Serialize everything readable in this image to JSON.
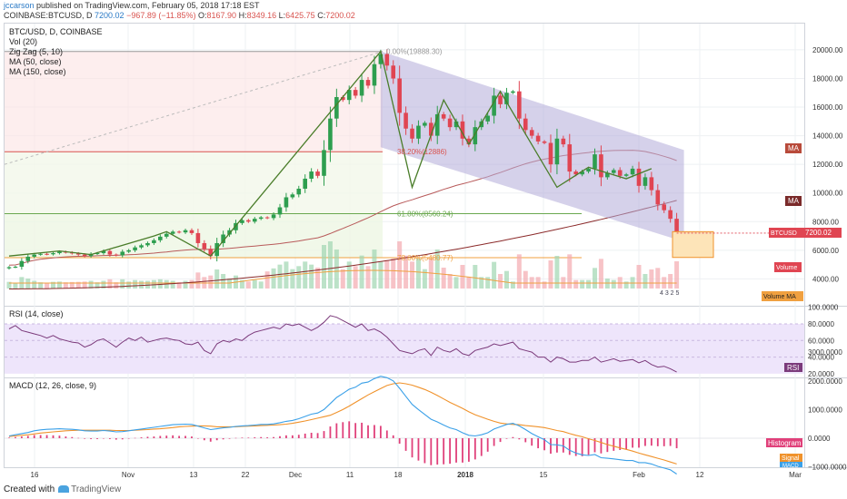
{
  "header": {
    "username": "jccarson",
    "published_text": "published on TradingView.com, February 05, 2018 17:18 EST",
    "symbol_line": {
      "symbol": "COINBASE:BTCUSD, D",
      "last": "7200.02",
      "change": "−967.89 (−11.85%)",
      "open_label": "O:",
      "open": "8167.90",
      "high_label": "H:",
      "high": "8349.16",
      "low_label": "L:",
      "low": "6425.75",
      "close_label": "C:",
      "close": "7200.02"
    }
  },
  "legend": [
    "BTC/USD, D, COINBASE",
    "Vol (20)",
    "Zig Zag (5, 10)",
    "MA (50, close)",
    "MA (150, close)"
  ],
  "footer": {
    "created_with": "Created with",
    "brand": "TradingView"
  },
  "colors": {
    "up_candle": "#2e9e4f",
    "down_candle": "#e04552",
    "zigzag": "#4a7d2a",
    "ma50": "#b85a5a",
    "ma150": "#8b2a2a",
    "channel": "#b3acd9",
    "rsi": "#7b3a7b",
    "macd": "#3aa0e8",
    "signal": "#f0922b",
    "histogram": "#e0407a"
  },
  "chart_data": [
    {
      "type": "candlestick",
      "title": "BTC/USD, D, COINBASE",
      "ylim": [
        3000,
        21000
      ],
      "y_ticks": [
        "20000.00",
        "18000.00",
        "16000.00",
        "14000.00",
        "12000.00",
        "10000.00",
        "8000.00",
        "6000.00",
        "4000.00"
      ],
      "x_ticks": [
        "16",
        "Nov",
        "13",
        "22",
        "Dec",
        "11",
        "18",
        "2018",
        "15",
        "Feb",
        "12",
        "Mar"
      ],
      "series_close": [
        4820,
        4850,
        5250,
        5550,
        5700,
        5750,
        5720,
        5800,
        5900,
        5850,
        5780,
        5700,
        5600,
        5750,
        5800,
        5950,
        5700,
        5650,
        5900,
        6000,
        6200,
        6350,
        6500,
        6700,
        6950,
        7150,
        7300,
        7250,
        7400,
        7200,
        6500,
        6100,
        5600,
        6500,
        7100,
        7400,
        7900,
        8100,
        8000,
        8200,
        8300,
        8250,
        8500,
        9000,
        9700,
        9900,
        10300,
        11000,
        11500,
        11200,
        13000,
        15200,
        16700,
        16500,
        17200,
        16800,
        17900,
        17500,
        19000,
        19700,
        18900,
        18000,
        15600,
        14500,
        13800,
        14700,
        14900,
        14000,
        15500,
        15200,
        14600,
        15000,
        13800,
        13400,
        14600,
        15000,
        15400,
        16800,
        16200,
        17000,
        17100,
        15200,
        14400,
        14000,
        13600,
        13500,
        12000,
        13800,
        13400,
        11500,
        11300,
        11500,
        11700,
        12700,
        11100,
        11400,
        11600,
        11200,
        11300,
        11700,
        10500,
        11100,
        10200,
        9200,
        8800,
        8200,
        7200
      ],
      "annotations": [
        {
          "level": "0.00%(19888.30)",
          "value": 19888.3
        },
        {
          "level": "38.20%(12886)",
          "value": 12886
        },
        {
          "level": "61.80%(8560.24)",
          "value": 8560.24
        },
        {
          "level": "78.60%(5480.77)",
          "value": 5480.77
        }
      ],
      "labels": {
        "last_price_tag": "BTCUSD",
        "last_price": "7200.02",
        "ma_tag": "MA",
        "volume_tag": "Volume",
        "volume_ma_tag": "Volume MA",
        "count_label": "4 3 2 5"
      }
    },
    {
      "type": "line",
      "title": "RSI (14, close)",
      "ylim": [
        20,
        100
      ],
      "y_ticks": [
        "100.0000",
        "80.0000",
        "60.0000",
        "40.0000",
        "20.0000"
      ],
      "series": [
        {
          "name": "RSI",
          "values": [
            74,
            78,
            72,
            70,
            68,
            66,
            63,
            66,
            62,
            60,
            58,
            57,
            52,
            55,
            60,
            62,
            57,
            52,
            58,
            63,
            60,
            64,
            58,
            60,
            62,
            63,
            61,
            60,
            56,
            55,
            58,
            48,
            44,
            56,
            60,
            58,
            62,
            60,
            66,
            70,
            72,
            74,
            76,
            74,
            80,
            78,
            80,
            76,
            72,
            76,
            82,
            90,
            88,
            84,
            80,
            76,
            80,
            72,
            74,
            70,
            64,
            56,
            48,
            46,
            44,
            48,
            50,
            42,
            52,
            48,
            46,
            50,
            44,
            42,
            48,
            50,
            52,
            56,
            54,
            56,
            58,
            50,
            48,
            46,
            40,
            40,
            34,
            40,
            38,
            34,
            34,
            36,
            36,
            40,
            34,
            36,
            38,
            35,
            36,
            37,
            33,
            36,
            31,
            28,
            29,
            26,
            22
          ]
        }
      ]
    },
    {
      "type": "line",
      "title": "MACD (12, 26, close, 9)",
      "ylim": [
        -1700,
        3200
      ],
      "y_ticks": [
        "3000.0000",
        "2000.0000",
        "1000.0000",
        "0.0000",
        "−1000.0000"
      ],
      "series": [
        {
          "name": "MACD",
          "values": [
            80,
            120,
            160,
            200,
            260,
            290,
            310,
            320,
            330,
            320,
            310,
            290,
            260,
            250,
            250,
            270,
            250,
            220,
            230,
            260,
            290,
            320,
            350,
            380,
            410,
            440,
            470,
            480,
            490,
            480,
            420,
            360,
            300,
            330,
            360,
            380,
            410,
            430,
            440,
            460,
            480,
            480,
            500,
            540,
            590,
            620,
            680,
            760,
            840,
            880,
            1000,
            1210,
            1420,
            1560,
            1710,
            1780,
            1920,
            1960,
            2080,
            2160,
            2110,
            2000,
            1740,
            1460,
            1180,
            1000,
            830,
            660,
            570,
            460,
            360,
            300,
            190,
            100,
            80,
            120,
            190,
            320,
            400,
            480,
            520,
            430,
            300,
            160,
            50,
            -50,
            -220,
            -230,
            -270,
            -420,
            -520,
            -580,
            -600,
            -570,
            -680,
            -700,
            -720,
            -750,
            -780,
            -780,
            -850,
            -850,
            -900,
            -980,
            -1040,
            -1100,
            -1250
          ]
        },
        {
          "name": "Signal",
          "values": [
            60,
            80,
            100,
            120,
            150,
            180,
            200,
            220,
            240,
            260,
            270,
            280,
            280,
            280,
            280,
            280,
            280,
            270,
            270,
            270,
            280,
            290,
            300,
            320,
            330,
            350,
            370,
            400,
            410,
            420,
            430,
            430,
            420,
            400,
            400,
            400,
            400,
            410,
            420,
            430,
            440,
            450,
            460,
            470,
            490,
            520,
            560,
            600,
            650,
            700,
            750,
            800,
            900,
            1000,
            1120,
            1250,
            1380,
            1510,
            1620,
            1730,
            1840,
            1900,
            1930,
            1900,
            1850,
            1780,
            1700,
            1600,
            1490,
            1370,
            1250,
            1150,
            1040,
            920,
            820,
            740,
            660,
            590,
            530,
            500,
            480,
            470,
            440,
            420,
            400,
            370,
            320,
            270,
            230,
            160,
            100,
            50,
            -20,
            -80,
            -150,
            -220,
            -280,
            -340,
            -390,
            -450,
            -520,
            -580,
            -640,
            -700,
            -760,
            -830,
            -900
          ]
        },
        {
          "name": "Histogram",
          "values": [
            20,
            40,
            60,
            80,
            110,
            110,
            110,
            100,
            90,
            60,
            40,
            10,
            -20,
            -30,
            -30,
            -10,
            -30,
            -50,
            -40,
            -10,
            10,
            30,
            50,
            60,
            80,
            90,
            100,
            80,
            80,
            60,
            -10,
            -70,
            -120,
            -70,
            -40,
            -20,
            10,
            20,
            20,
            30,
            40,
            30,
            40,
            70,
            100,
            100,
            120,
            160,
            190,
            180,
            250,
            410,
            520,
            560,
            590,
            530,
            540,
            450,
            460,
            430,
            270,
            100,
            -190,
            -440,
            -670,
            -780,
            -870,
            -940,
            -920,
            -910,
            -890,
            -850,
            -850,
            -820,
            -740,
            -620,
            -470,
            -270,
            -130,
            -20,
            40,
            -40,
            -140,
            -260,
            -350,
            -420,
            -540,
            -500,
            -500,
            -580,
            -620,
            -630,
            -580,
            -490,
            -530,
            -480,
            -440,
            -410,
            -390,
            -330,
            -330,
            -270,
            -260,
            -280,
            -280,
            -270,
            -350
          ]
        }
      ]
    }
  ]
}
